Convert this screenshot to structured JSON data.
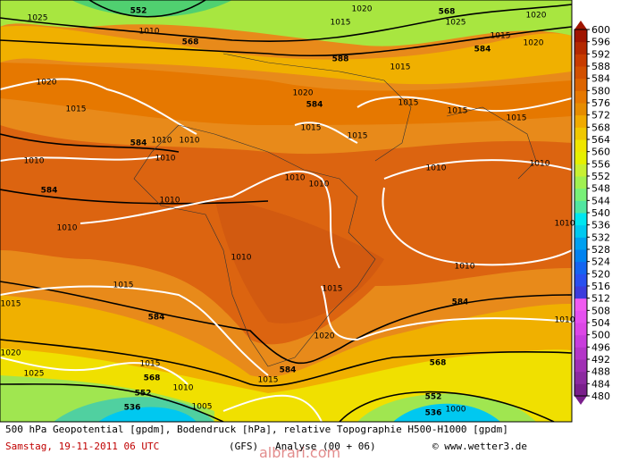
{
  "map": {
    "contour_labels": [
      "552",
      "568",
      "1025",
      "1010",
      "588",
      "1015",
      "1020",
      "568",
      "1025",
      "1020",
      "584",
      "1015",
      "1020",
      "1020",
      "1015",
      "1015",
      "1020",
      "584",
      "1015",
      "1015",
      "1015",
      "1015",
      "1015",
      "584",
      "1010",
      "1010",
      "1010",
      "1010",
      "1010",
      "1010",
      "1010",
      "1010",
      "584",
      "1010",
      "1010",
      "1010",
      "1010",
      "1010",
      "1015",
      "1015",
      "1015",
      "584",
      "584",
      "1010",
      "1020",
      "1020",
      "568",
      "584",
      "1015",
      "1025",
      "1015",
      "568",
      "1010",
      "552",
      "536",
      "1005",
      "552",
      "536",
      "1000"
    ]
  },
  "legend": {
    "levels": [
      480,
      484,
      488,
      492,
      496,
      500,
      504,
      508,
      512,
      516,
      520,
      524,
      528,
      532,
      536,
      540,
      544,
      548,
      552,
      556,
      560,
      564,
      568,
      572,
      576,
      580,
      584,
      588,
      592,
      596,
      600
    ],
    "colors": [
      "#7a1f8c",
      "#8c2aa0",
      "#a030b4",
      "#b436c8",
      "#c83cdc",
      "#dc46e6",
      "#e650f0",
      "#f05af0",
      "#3c3cdc",
      "#2850f0",
      "#1464f0",
      "#0082f0",
      "#00a0f0",
      "#00c8f0",
      "#00e6f0",
      "#50e6a0",
      "#78f078",
      "#a0f050",
      "#c8f032",
      "#e6f000",
      "#f0e600",
      "#f0c800",
      "#f0aa00",
      "#e68c00",
      "#e67800",
      "#dc6400",
      "#d25000",
      "#c83c00",
      "#b42800",
      "#a01400"
    ]
  },
  "caption": {
    "line1": "500 hPa Geopotential [gpdm], Bodendruck [hPa], relative Topographie H500-H1000 [gpdm]",
    "date": "Samstag, 19-11-2011  06 UTC",
    "model": "(GFS)",
    "run": "Analyse (00 + 06)",
    "credit": "© www.wetter3.de",
    "watermark": "albrari.com"
  }
}
